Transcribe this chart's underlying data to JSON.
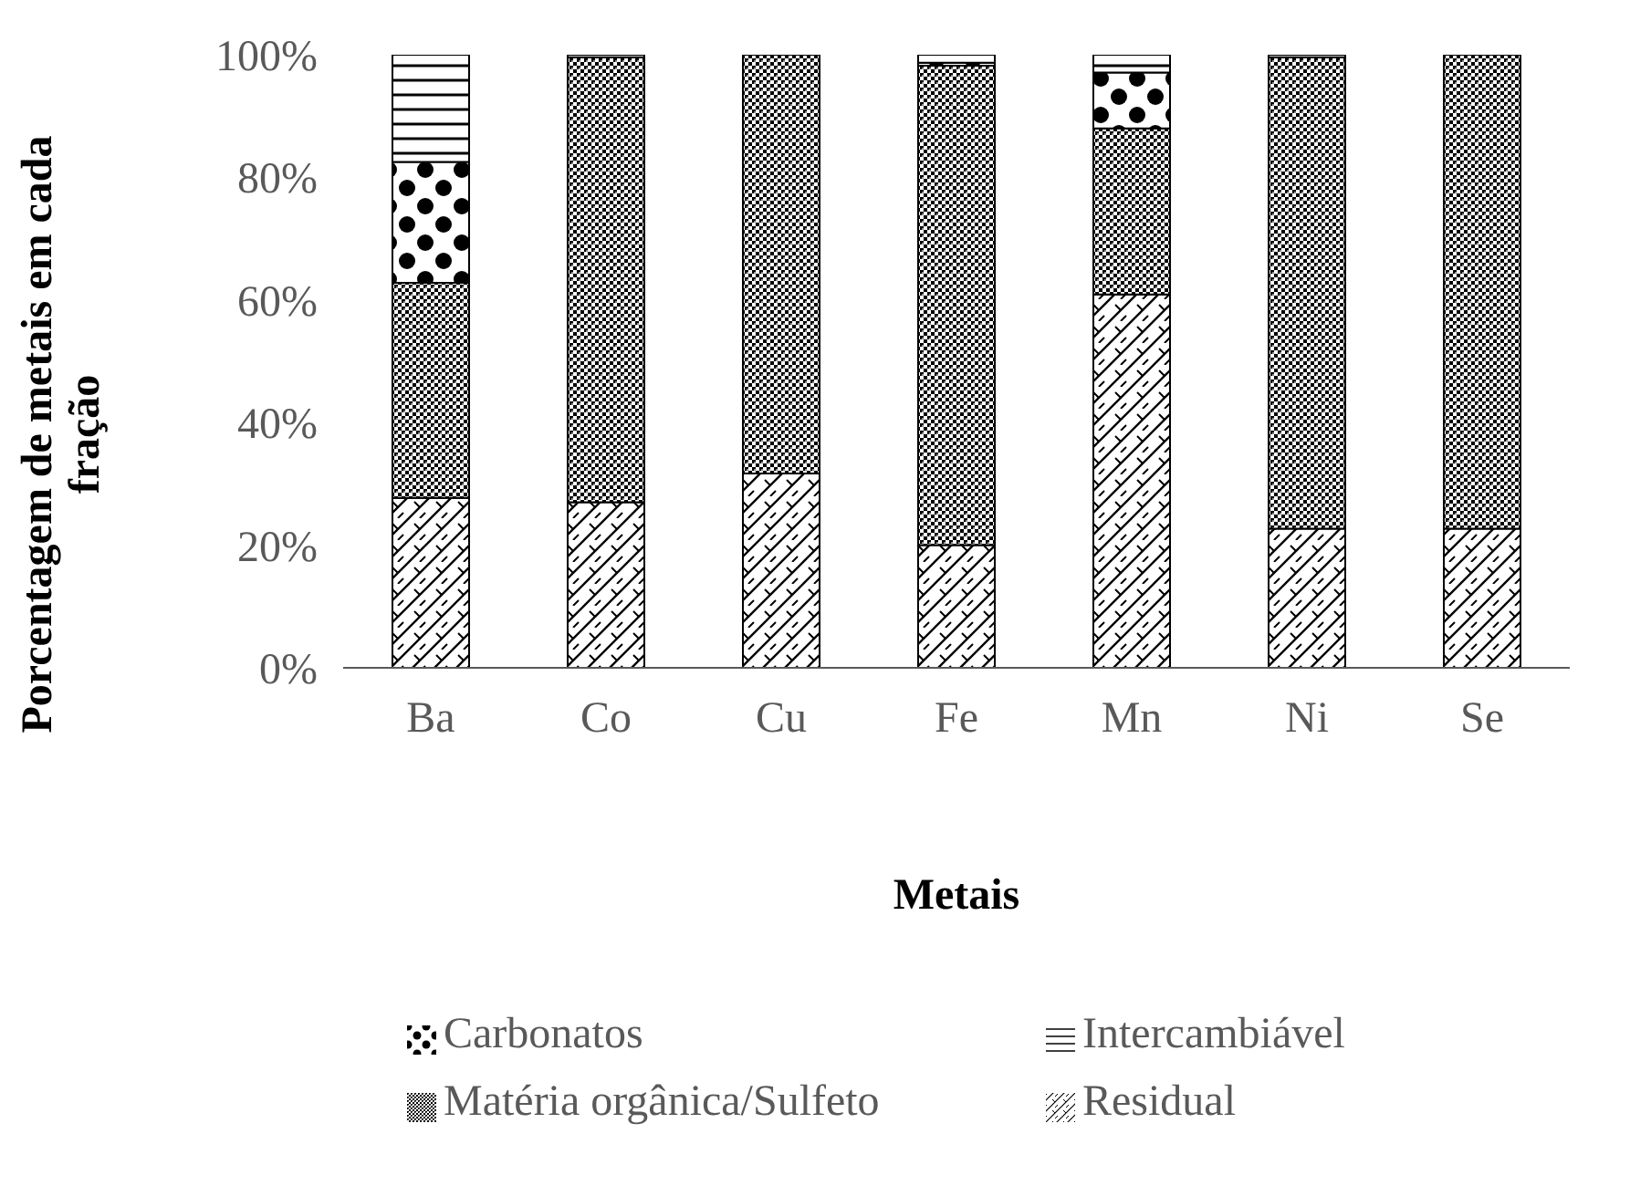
{
  "chart_data": {
    "type": "bar",
    "stacked": true,
    "xlabel": "Metais",
    "ylabel": "Porcentagem de metais em cada fração",
    "categories": [
      "Ba",
      "Co",
      "Cu",
      "Fe",
      "Mn",
      "Ni",
      "Se"
    ],
    "series": [
      {
        "name": "Residual",
        "color": "#000000",
        "values": [
          27.7,
          27,
          31.7,
          20,
          60.9,
          22.7,
          22.7
        ]
      },
      {
        "name": "Matéria orgânica/Sulfeto",
        "color": "#000000",
        "values": [
          35.1,
          72.6,
          68.3,
          78.2,
          27.1,
          76.9,
          77.3
        ]
      },
      {
        "name": "Carbonatos",
        "color": "#000000",
        "values": [
          19.7,
          0,
          0,
          0.5,
          9.1,
          0,
          0
        ]
      },
      {
        "name": "Intercambiável",
        "color": "#000000",
        "values": [
          17.5,
          0.4,
          0,
          1.3,
          2.9,
          0.4,
          0
        ]
      }
    ],
    "ylim": [
      0,
      100
    ],
    "yticks": [
      {
        "value": 0,
        "label": "0%"
      },
      {
        "value": 20,
        "label": "20%"
      },
      {
        "value": 40,
        "label": "40%"
      },
      {
        "value": 60,
        "label": "60%"
      },
      {
        "value": 80,
        "label": "80%"
      },
      {
        "value": 100,
        "label": "100%"
      }
    ],
    "grid": false,
    "legend": "bottom"
  }
}
